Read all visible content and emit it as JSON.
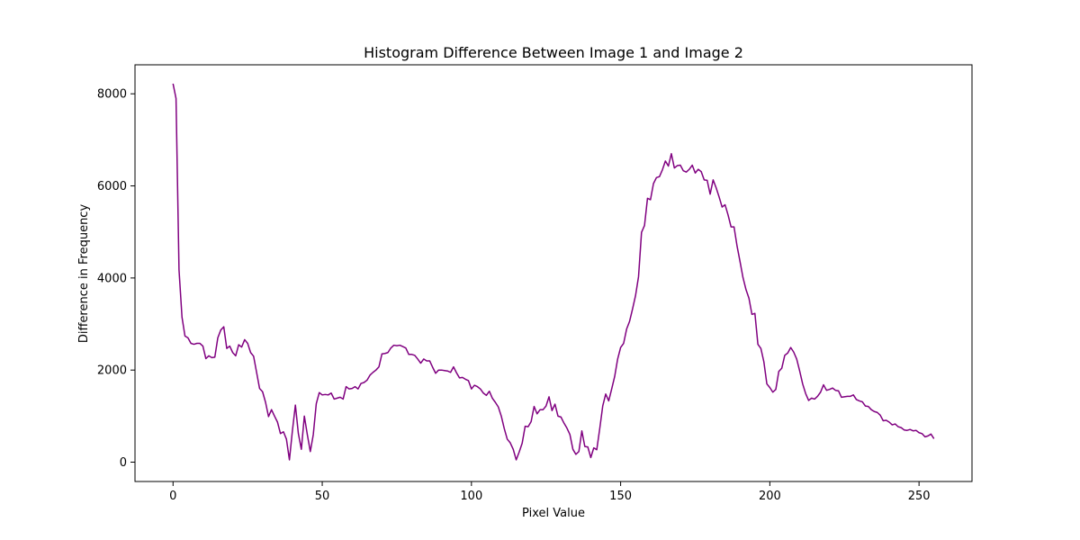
{
  "chart_data": {
    "type": "line",
    "title": "Histogram Difference Between Image 1 and Image 2",
    "xlabel": "Pixel Value",
    "ylabel": "Difference in Frequency",
    "xlim": [
      -12.75,
      267.75
    ],
    "ylim": [
      -420,
      8630
    ],
    "xticks": [
      0,
      50,
      100,
      150,
      200,
      250
    ],
    "yticks": [
      0,
      2000,
      4000,
      6000,
      8000
    ],
    "xtick_labels": [
      "0",
      "50",
      "100",
      "150",
      "200",
      "250"
    ],
    "ytick_labels": [
      "0",
      "2000",
      "4000",
      "6000",
      "8000"
    ],
    "grid": false,
    "series": [
      {
        "color": "#800080",
        "x": [
          0,
          1,
          2,
          3,
          4,
          5,
          6,
          7,
          8,
          9,
          10,
          11,
          12,
          13,
          14,
          15,
          16,
          17,
          18,
          19,
          20,
          21,
          22,
          23,
          24,
          25,
          26,
          27,
          28,
          29,
          30,
          31,
          32,
          33,
          34,
          35,
          36,
          37,
          38,
          39,
          40,
          41,
          42,
          43,
          44,
          45,
          46,
          47,
          48,
          49,
          50,
          51,
          52,
          53,
          54,
          55,
          56,
          57,
          58,
          59,
          60,
          61,
          62,
          63,
          64,
          65,
          66,
          67,
          68,
          69,
          70,
          71,
          72,
          73,
          74,
          75,
          76,
          77,
          78,
          79,
          80,
          81,
          82,
          83,
          84,
          85,
          86,
          87,
          88,
          89,
          90,
          91,
          92,
          93,
          94,
          95,
          96,
          97,
          98,
          99,
          100,
          101,
          102,
          103,
          104,
          105,
          106,
          107,
          108,
          109,
          110,
          111,
          112,
          113,
          114,
          115,
          116,
          117,
          118,
          119,
          120,
          121,
          122,
          123,
          124,
          125,
          126,
          127,
          128,
          129,
          130,
          131,
          132,
          133,
          134,
          135,
          136,
          137,
          138,
          139,
          140,
          141,
          142,
          143,
          144,
          145,
          146,
          147,
          148,
          149,
          150,
          151,
          152,
          153,
          154,
          155,
          156,
          157,
          158,
          159,
          160,
          161,
          162,
          163,
          164,
          165,
          166,
          167,
          168,
          169,
          170,
          171,
          172,
          173,
          174,
          175,
          176,
          177,
          178,
          179,
          180,
          181,
          182,
          183,
          184,
          185,
          186,
          187,
          188,
          189,
          190,
          191,
          192,
          193,
          194,
          195,
          196,
          197,
          198,
          199,
          200,
          201,
          202,
          203,
          204,
          205,
          206,
          207,
          208,
          209,
          210,
          211,
          212,
          213,
          214,
          215,
          216,
          217,
          218,
          219,
          220,
          221,
          222,
          223,
          224,
          225,
          226,
          227,
          228,
          229,
          230,
          231,
          232,
          233,
          234,
          235,
          236,
          237,
          238,
          239,
          240,
          241,
          242,
          243,
          244,
          245,
          246,
          247,
          248,
          249,
          250,
          251,
          252,
          253,
          254,
          255
        ],
        "y": [
          8220,
          7900,
          4180,
          3150,
          2740,
          2700,
          2580,
          2560,
          2580,
          2580,
          2520,
          2250,
          2310,
          2270,
          2280,
          2700,
          2870,
          2940,
          2470,
          2520,
          2380,
          2310,
          2550,
          2500,
          2660,
          2580,
          2380,
          2300,
          1950,
          1600,
          1530,
          1300,
          990,
          1140,
          1000,
          870,
          620,
          660,
          500,
          50,
          680,
          1240,
          620,
          280,
          1000,
          600,
          230,
          600,
          1270,
          1510,
          1460,
          1470,
          1460,
          1500,
          1370,
          1390,
          1410,
          1370,
          1640,
          1590,
          1600,
          1640,
          1590,
          1710,
          1730,
          1780,
          1890,
          1950,
          2000,
          2070,
          2350,
          2360,
          2380,
          2480,
          2540,
          2530,
          2540,
          2510,
          2480,
          2340,
          2340,
          2320,
          2240,
          2150,
          2240,
          2200,
          2200,
          2060,
          1930,
          2000,
          2000,
          1990,
          1980,
          1950,
          2070,
          1940,
          1830,
          1840,
          1800,
          1770,
          1590,
          1670,
          1640,
          1590,
          1500,
          1450,
          1540,
          1390,
          1300,
          1200,
          1000,
          730,
          500,
          420,
          280,
          50,
          220,
          410,
          780,
          770,
          880,
          1210,
          1050,
          1140,
          1140,
          1220,
          1420,
          1120,
          1260,
          1000,
          980,
          850,
          740,
          600,
          280,
          170,
          230,
          680,
          340,
          330,
          100,
          310,
          270,
          730,
          1220,
          1480,
          1330,
          1590,
          1860,
          2240,
          2490,
          2580,
          2890,
          3060,
          3330,
          3620,
          4030,
          4990,
          5140,
          5730,
          5700,
          6050,
          6180,
          6200,
          6350,
          6540,
          6430,
          6700,
          6390,
          6440,
          6450,
          6330,
          6300,
          6360,
          6450,
          6280,
          6360,
          6310,
          6130,
          6120,
          5820,
          6130,
          5960,
          5760,
          5540,
          5590,
          5370,
          5110,
          5110,
          4700,
          4360,
          4010,
          3750,
          3560,
          3210,
          3230,
          2560,
          2470,
          2180,
          1700,
          1620,
          1520,
          1580,
          1970,
          2040,
          2320,
          2370,
          2490,
          2390,
          2240,
          1980,
          1700,
          1490,
          1340,
          1390,
          1370,
          1430,
          1520,
          1680,
          1560,
          1580,
          1610,
          1560,
          1550,
          1410,
          1420,
          1430,
          1430,
          1460,
          1360,
          1330,
          1310,
          1220,
          1210,
          1140,
          1100,
          1080,
          1020,
          900,
          910,
          870,
          810,
          830,
          770,
          750,
          700,
          690,
          710,
          680,
          690,
          640,
          620,
          550,
          570,
          610,
          510
        ],
        "linewidth": 1.5
      }
    ]
  }
}
